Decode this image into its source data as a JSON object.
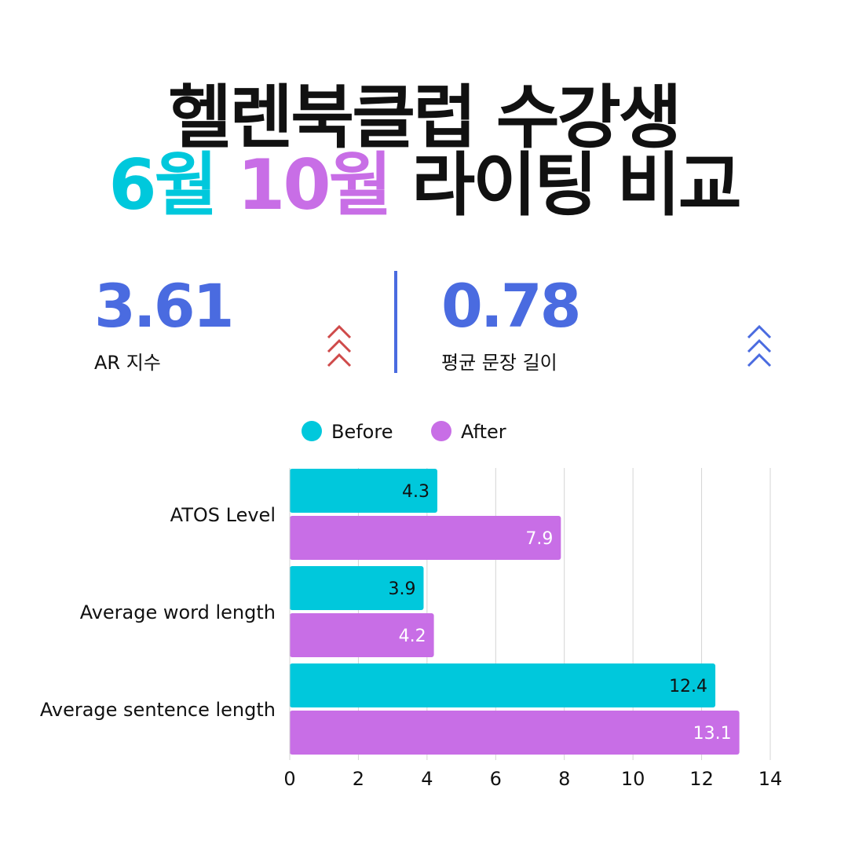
{
  "title": {
    "line1": "헬렌북클럽 수강생",
    "line2_part1": "6월",
    "line2_part2": "10월",
    "line2_part3": "라이팅 비교"
  },
  "stats": [
    {
      "value": "3.61",
      "label": "AR 지수",
      "icon": "triple-chevron-up-icon",
      "color": "#cf4a4a"
    },
    {
      "value": "0.78",
      "label": "평균 문장 길이",
      "icon": "triple-chevron-up-icon",
      "color": "#4a6be0"
    }
  ],
  "colors": {
    "accent_blue": "#4a6be0",
    "before": "#00c8dc",
    "after": "#c86ee6",
    "title_dark": "#111111",
    "grid": "#d4d4d4"
  },
  "chart_data": {
    "type": "bar",
    "orientation": "horizontal",
    "categories": [
      "ATOS Level",
      "Average word length",
      "Average sentence length"
    ],
    "series": [
      {
        "name": "Before",
        "values": [
          4.3,
          3.9,
          12.4
        ],
        "labels": [
          "4.3",
          "3.9",
          "12.4"
        ],
        "color": "#00c8dc"
      },
      {
        "name": "After",
        "values": [
          7.9,
          4.2,
          13.1
        ],
        "labels": [
          "7.9",
          "4.2",
          "13.1"
        ],
        "color": "#c86ee6"
      }
    ],
    "xlim": [
      0,
      14
    ],
    "xticks": [
      "0",
      "2",
      "4",
      "6",
      "8",
      "10",
      "12",
      "14"
    ],
    "grid": true,
    "legend": "top-center"
  }
}
